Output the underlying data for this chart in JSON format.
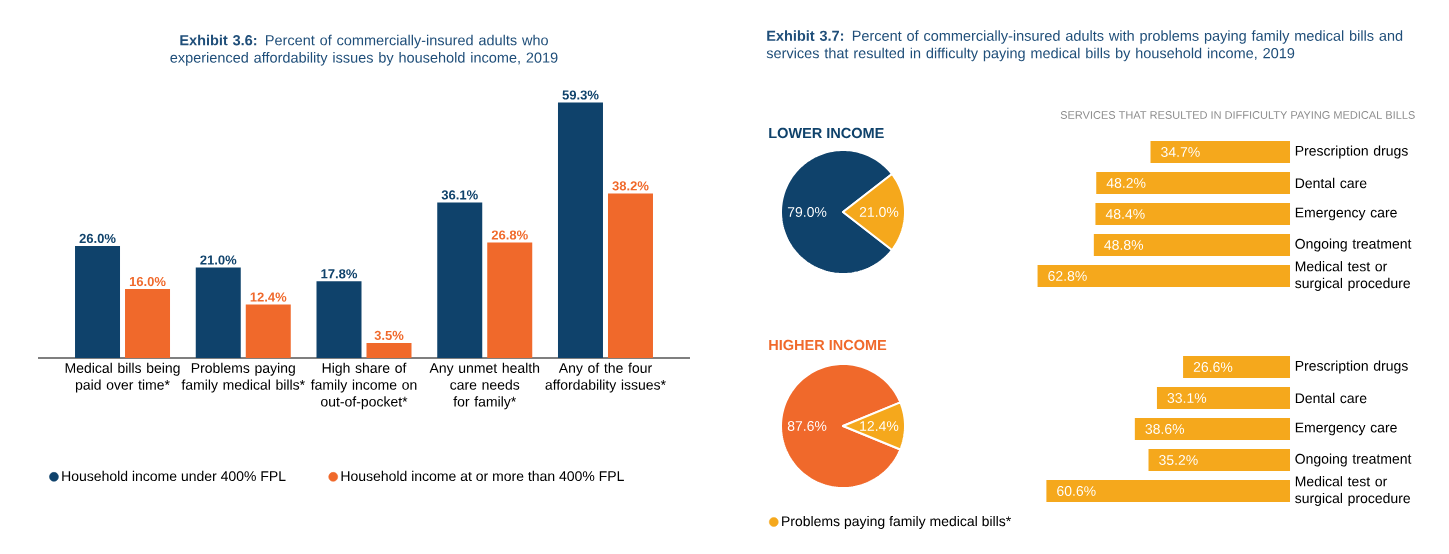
{
  "chart_data": [
    {
      "type": "bar",
      "title": "**Exhibit 3.6:** Percent of commercially-insured adults who experienced affordability issues by household income, 2019",
      "categories": [
        "Medical bills being paid over time*",
        "Problems paying family medical bills*",
        "High share of family income on out-of-pocket*",
        "Any unmet health care needs for family*",
        "Any of the four affordability issues*"
      ],
      "legend": "bottom",
      "series": [
        {
          "name": "Household income under 400% FPL",
          "color": "#0f426b",
          "values": [
            26.0,
            21.0,
            17.8,
            36.1,
            59.3
          ],
          "value_labels": [
            "26.0%",
            "21.0%",
            "17.8%",
            "36.1%",
            "59.3%"
          ]
        },
        {
          "name": "Household income at or more than 400% FPL",
          "color": "#f0692b",
          "values": [
            16.0,
            12.4,
            3.5,
            26.8,
            38.2
          ],
          "value_labels": [
            "16.0%",
            "12.4%",
            "3.5%",
            "26.8%",
            "38.2%"
          ]
        }
      ]
    },
    {
      "type": "pie",
      "title": "**Exhibit 3.7:** Percent of commercially-insured adults with problems paying family medical bills and services that resulted in difficulty paying medical bills by household income, 2019",
      "subtitle": "LOWER INCOME",
      "categories": [
        null,
        null
      ],
      "values": [
        79.0,
        21.0
      ],
      "colors": [
        "#0f426b",
        "#f5a81c"
      ],
      "value_labels": [
        "79.0%",
        "21.0%"
      ]
    },
    {
      "type": "bar",
      "orientation": "horizontal",
      "title": "SERVICES THAT RESULTED IN DIFFICULTY PAYING MEDICAL BILLS",
      "categories": [
        "Prescription drugs",
        "Dental care",
        "Emergency care",
        "Ongoing treatment",
        "Medical test or surgical procedure"
      ],
      "values": [
        34.7,
        48.2,
        48.4,
        48.8,
        62.8
      ],
      "color": "#f5a81c",
      "value_labels": [
        "34.7%",
        "48.2%",
        "48.4%",
        "48.8%",
        "62.8%"
      ]
    },
    {
      "type": "pie",
      "subtitle": "HIGHER INCOME",
      "categories": [
        null,
        "Problems paying family medical bills*"
      ],
      "values": [
        87.6,
        12.4
      ],
      "colors": [
        "#f0692b",
        "#f5a81c"
      ],
      "value_labels": [
        "87.6%",
        "12.4%"
      ],
      "legend": "bottom"
    },
    {
      "type": "bar",
      "orientation": "horizontal",
      "categories": [
        "Prescription drugs",
        "Dental care",
        "Emergency care",
        "Ongoing treatment",
        "Medical test or surgical procedure"
      ],
      "values": [
        26.6,
        33.1,
        38.6,
        35.2,
        60.6
      ],
      "color": "#f5a81c",
      "value_labels": [
        "26.6%",
        "33.1%",
        "38.6%",
        "35.2%",
        "60.6%"
      ]
    }
  ]
}
